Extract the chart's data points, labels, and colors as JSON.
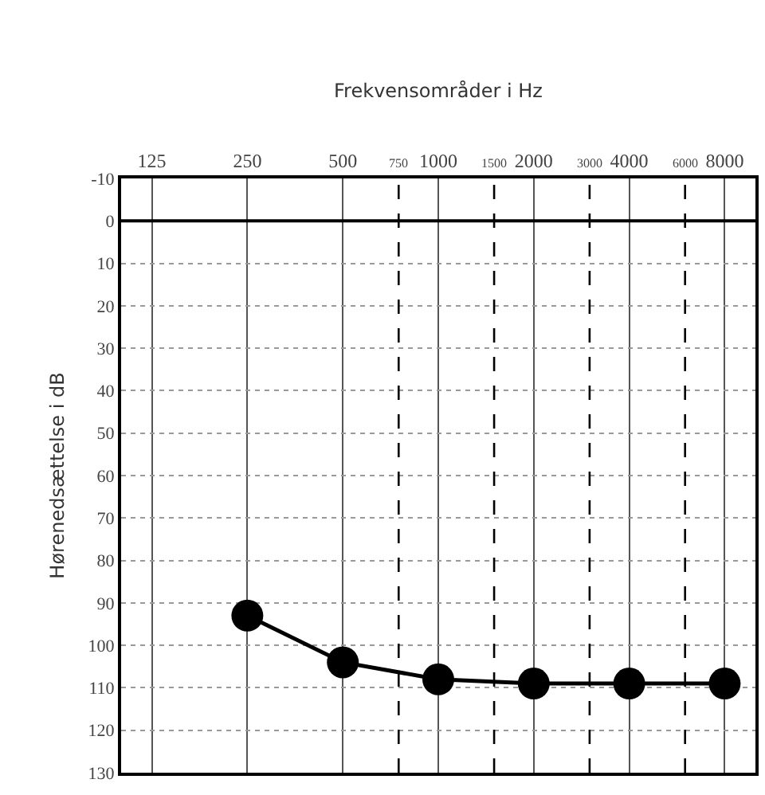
{
  "chart_data": {
    "type": "line",
    "xlabel": "Frekvensområder i Hz",
    "ylabel": "Hørenedsættelse i dB",
    "x": [
      250,
      500,
      1000,
      2000,
      4000,
      8000
    ],
    "series": [
      {
        "color": "#000000",
        "values": [
          93,
          104,
          108,
          109,
          109,
          109
        ]
      }
    ],
    "log": "x",
    "xlim": [
      100,
      10000
    ],
    "xticks": [
      125,
      250,
      500,
      1000,
      2000,
      4000,
      8000
    ],
    "ylim": [
      130,
      -10
    ],
    "yticks": [
      -10,
      0,
      10,
      20,
      30,
      40,
      50,
      60,
      70,
      80,
      90,
      100,
      110,
      120,
      130
    ],
    "grid": true,
    "marker": "circle",
    "line_style": "solid",
    "ref_lines": [
      {
        "axis": "y",
        "value": 0,
        "label": null,
        "color": "#000000",
        "line_style": "solid"
      },
      {
        "axis": "x",
        "value": 750,
        "label": "750",
        "color": "#000000",
        "line_style": "dashed"
      },
      {
        "axis": "x",
        "value": 1500,
        "label": "1500",
        "color": "#000000",
        "line_style": "dashed"
      },
      {
        "axis": "x",
        "value": 3000,
        "label": "3000",
        "color": "#000000",
        "line_style": "dashed"
      },
      {
        "axis": "x",
        "value": 6000,
        "label": "6000",
        "color": "#000000",
        "line_style": "dashed"
      }
    ]
  }
}
